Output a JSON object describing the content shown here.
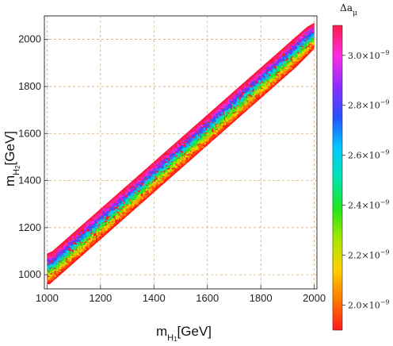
{
  "chart_data": {
    "type": "scatter",
    "title": "",
    "xlabel": "m_H1[GeV]",
    "ylabel": "m_H2[GeV]",
    "xlim": [
      990,
      2010
    ],
    "ylim": [
      940,
      2100
    ],
    "xticks": [
      1000,
      1200,
      1400,
      1600,
      1800,
      2000
    ],
    "yticks": [
      1000,
      1200,
      1400,
      1600,
      1800,
      2000
    ],
    "xtick_labels": [
      "1000",
      "1200",
      "1400",
      "1600",
      "1800",
      "2000"
    ],
    "ytick_labels": [
      "1000",
      "1200",
      "1400",
      "1600",
      "1800",
      "2000"
    ],
    "grid": true,
    "band": {
      "upper_edge": [
        [
          1000,
          1090
        ],
        [
          1020,
          1100
        ],
        [
          1975,
          2055
        ],
        [
          2000,
          2070
        ]
      ],
      "lower_edge": [
        [
          1000,
          960
        ],
        [
          1010,
          960
        ],
        [
          1930,
          1880
        ],
        [
          2000,
          1960
        ]
      ],
      "center_line": [
        [
          1000,
          1015
        ],
        [
          2000,
          2015
        ]
      ],
      "description": "Points fill a diagonal band; colour encodes Δa_μ, highest at the upper edge, lowest at both edges' outer rims."
    },
    "colorbar": {
      "title": "Δa",
      "title_sub": "μ",
      "range": [
        1.9e-09,
        3.12e-09
      ],
      "ticks": [
        {
          "mantissa": "2.0",
          "exponent": "−9",
          "value": 2e-09
        },
        {
          "mantissa": "2.2",
          "exponent": "−9",
          "value": 2.2e-09
        },
        {
          "mantissa": "2.4",
          "exponent": "−9",
          "value": 2.4e-09
        },
        {
          "mantissa": "2.6",
          "exponent": "−9",
          "value": 2.6e-09
        },
        {
          "mantissa": "2.8",
          "exponent": "−9",
          "value": 2.8e-09
        },
        {
          "mantissa": "3.0",
          "exponent": "−9",
          "value": 3e-09
        }
      ],
      "times_label": "×10",
      "gradient_colors": [
        "#ff1a1a",
        "#ff7a00",
        "#ffd000",
        "#a8e600",
        "#1ee61e",
        "#00e6b4",
        "#00c8ff",
        "#2850ff",
        "#8c2cff",
        "#ff2ce6",
        "#ff1a4a"
      ]
    }
  }
}
